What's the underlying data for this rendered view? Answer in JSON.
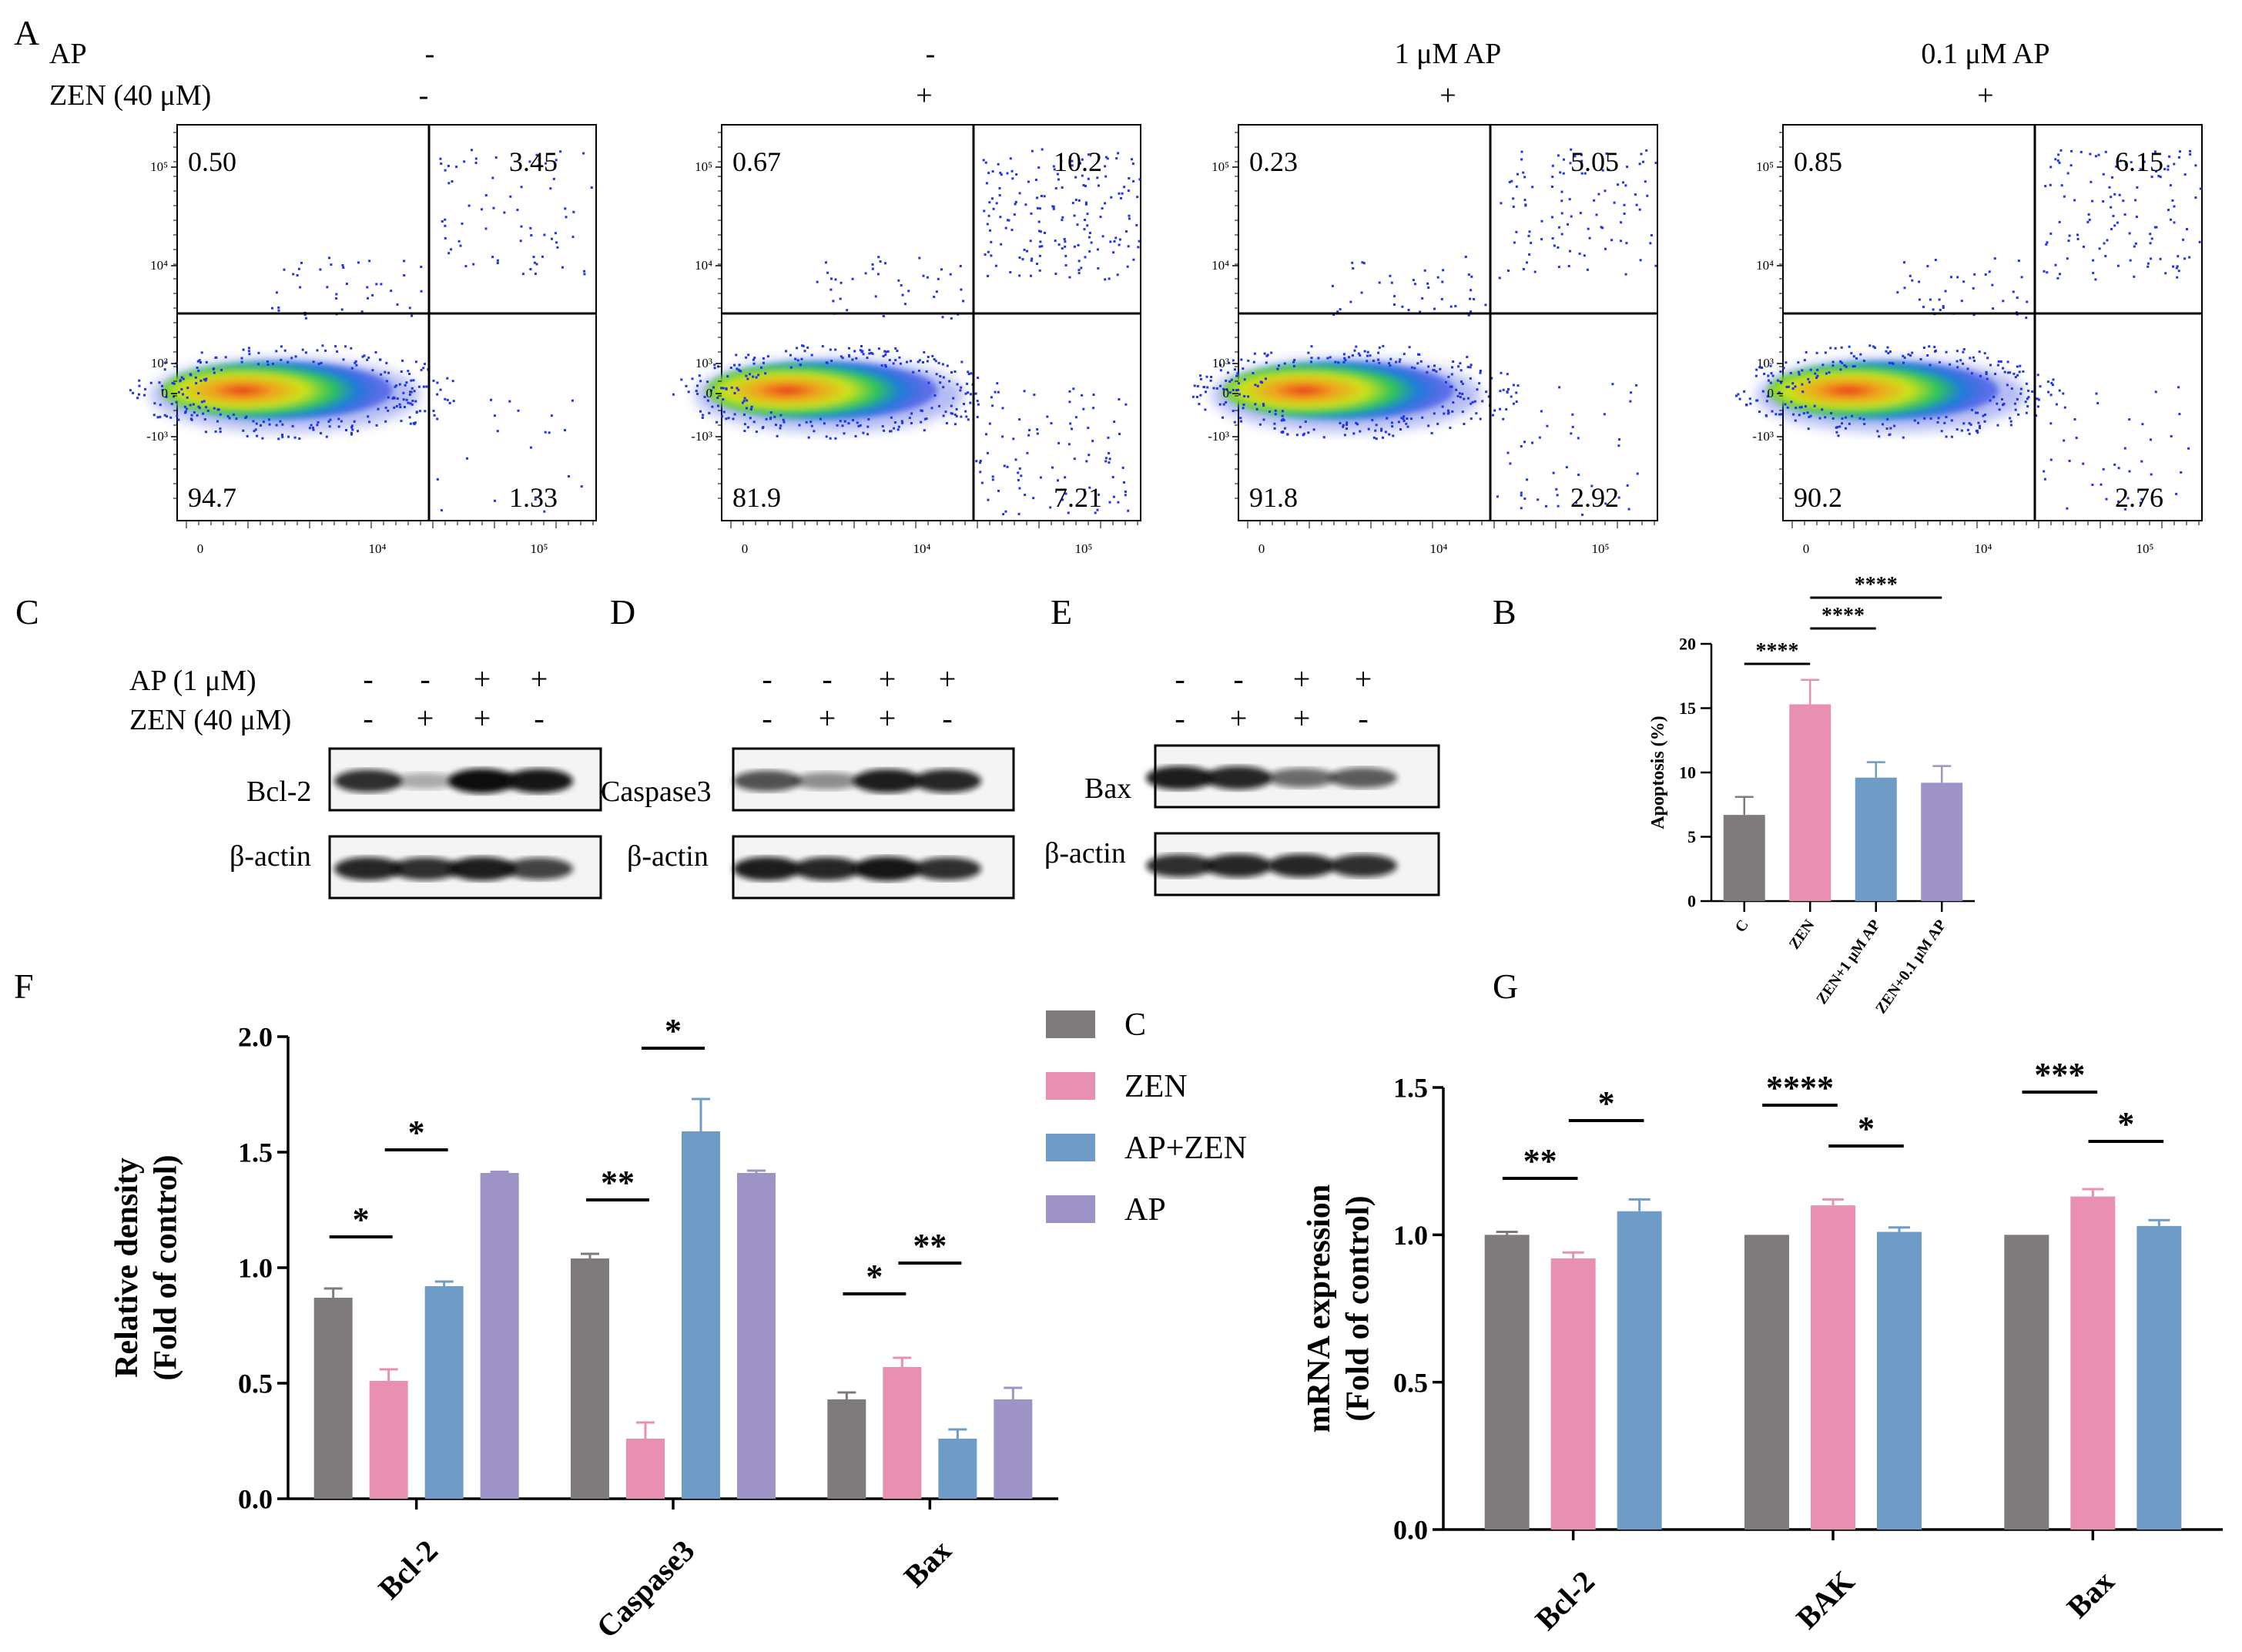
{
  "colors": {
    "C": "#7f7b7d",
    "ZEN": "#e990b2",
    "AP_ZEN": "#6f9cc6",
    "AP": "#9d93c6",
    "ZEN01": "#9d93c6"
  },
  "panel_letters": {
    "A": "A",
    "B": "B",
    "C": "C",
    "D": "D",
    "E": "E",
    "F": "F",
    "G": "G"
  },
  "panelA": {
    "row_labels": {
      "ap": "AP",
      "zen": "ZEN (40 μM)"
    },
    "columns": [
      {
        "ap": "-",
        "zen": "-",
        "q_ul": "0.50",
        "q_ur": "3.45",
        "q_ll": "94.7",
        "q_lr": "1.33"
      },
      {
        "ap": "-",
        "zen": "+",
        "q_ul": "0.67",
        "q_ur": "10.2",
        "q_ll": "81.9",
        "q_lr": "7.21"
      },
      {
        "ap": "1 μM AP",
        "zen": "+",
        "q_ul": "0.23",
        "q_ur": "5.05",
        "q_ll": "91.8",
        "q_lr": "2.92"
      },
      {
        "ap": "0.1 μM AP",
        "zen": "+",
        "q_ul": "0.85",
        "q_ur": "6.15",
        "q_ll": "90.2",
        "q_lr": "2.76"
      }
    ],
    "y_ticks": [
      "10⁵",
      "10⁴",
      "10³",
      "0",
      "-10³"
    ],
    "x_ticks": [
      "0",
      "10⁴",
      "10⁵"
    ]
  },
  "blots": {
    "ap_label": "AP (1 μM)",
    "zen_label": "ZEN (40 μM)",
    "ap_signs": [
      "-",
      "-",
      "+",
      "+"
    ],
    "zen_signs": [
      "-",
      "+",
      "+",
      "-"
    ],
    "C": {
      "target": "Bcl-2",
      "control": "β-actin"
    },
    "D": {
      "target": "Caspase3",
      "control": "β-actin"
    },
    "E": {
      "target": "Bax",
      "control": "β-actin"
    }
  },
  "chart_data": [
    {
      "panel": "B",
      "type": "bar",
      "ylabel": "Apoptosis (%)",
      "ylim": [
        0,
        20
      ],
      "yticks": [
        0,
        5,
        10,
        15,
        20
      ],
      "categories": [
        "C",
        "ZEN",
        "ZEN+1 μM AP",
        "ZEN+0.1 μM AP"
      ],
      "values": [
        6.7,
        15.3,
        9.6,
        9.2
      ],
      "errors": [
        1.4,
        1.9,
        1.2,
        1.3
      ],
      "significance": [
        {
          "from": 0,
          "to": 1,
          "label": "****"
        },
        {
          "from": 1,
          "to": 2,
          "label": "****"
        },
        {
          "from": 1,
          "to": 3,
          "label": "****"
        }
      ]
    },
    {
      "panel": "F",
      "type": "bar",
      "ylabel": "Relative density",
      "ylabel2": "(Fold of control)",
      "ylim": [
        0,
        2.0
      ],
      "yticks": [
        "0.0",
        "0.5",
        "1.0",
        "1.5",
        "2.0"
      ],
      "categories": [
        "Bcl-2",
        "Caspase3",
        "Bax"
      ],
      "series": [
        {
          "name": "C",
          "values": [
            0.87,
            1.04,
            0.43
          ],
          "errors": [
            0.04,
            0.02,
            0.03
          ]
        },
        {
          "name": "ZEN",
          "values": [
            0.51,
            0.26,
            0.57
          ],
          "errors": [
            0.05,
            0.07,
            0.04
          ]
        },
        {
          "name": "AP+ZEN",
          "values": [
            0.92,
            1.59,
            0.26
          ],
          "errors": [
            0.02,
            0.14,
            0.04
          ]
        },
        {
          "name": "AP",
          "values": [
            1.41,
            1.41,
            0.43
          ],
          "errors": [
            0.005,
            0.01,
            0.05
          ]
        }
      ],
      "significance": [
        {
          "group": 0,
          "from": 0,
          "to": 1,
          "label": "*"
        },
        {
          "group": 0,
          "from": 1,
          "to": 2,
          "label": "*"
        },
        {
          "group": 1,
          "from": 0,
          "to": 1,
          "label": "**"
        },
        {
          "group": 1,
          "from": 1,
          "to": 2,
          "label": "*"
        },
        {
          "group": 2,
          "from": 0,
          "to": 1,
          "label": "*"
        },
        {
          "group": 2,
          "from": 1,
          "to": 2,
          "label": "**"
        }
      ]
    },
    {
      "panel": "G",
      "type": "bar",
      "ylabel": "mRNA expression",
      "ylabel2": "(Fold of control)",
      "ylim": [
        0,
        1.5
      ],
      "yticks": [
        "0.0",
        "0.5",
        "1.0",
        "1.5"
      ],
      "categories": [
        "Bcl-2",
        "BAK",
        "Bax"
      ],
      "series": [
        {
          "name": "C",
          "values": [
            1.0,
            1.0,
            1.0
          ],
          "errors": [
            0.01,
            0,
            0
          ]
        },
        {
          "name": "ZEN",
          "values": [
            0.92,
            1.1,
            1.13
          ],
          "errors": [
            0.02,
            0.02,
            0.025
          ]
        },
        {
          "name": "AP+ZEN",
          "values": [
            1.08,
            1.01,
            1.03
          ],
          "errors": [
            0.04,
            0.015,
            0.02
          ]
        }
      ],
      "significance": [
        {
          "group": 0,
          "from": 0,
          "to": 1,
          "label": "**"
        },
        {
          "group": 0,
          "from": 1,
          "to": 2,
          "label": "*"
        },
        {
          "group": 1,
          "from": 0,
          "to": 1,
          "label": "****"
        },
        {
          "group": 1,
          "from": 1,
          "to": 2,
          "label": "*"
        },
        {
          "group": 2,
          "from": 0,
          "to": 1,
          "label": "***"
        },
        {
          "group": 2,
          "from": 1,
          "to": 2,
          "label": "*"
        }
      ]
    }
  ]
}
